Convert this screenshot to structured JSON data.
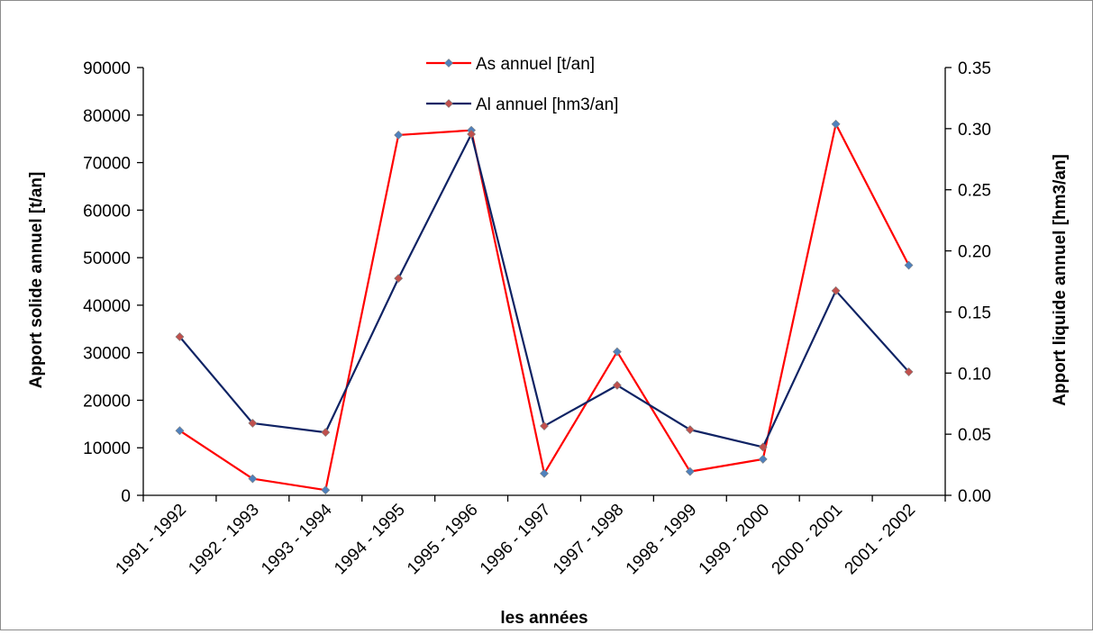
{
  "chart_data": {
    "type": "line",
    "title": "",
    "xlabel": "les années",
    "ylabel_left": "Apport solide annuel [t/an]",
    "ylabel_right": "Apport liquide annuel [hm3/an]",
    "categories": [
      "1991 - 1992",
      "1992 - 1993",
      "1993 - 1994",
      "1994 - 1995",
      "1995 - 1996",
      "1996 - 1997",
      "1997 - 1998",
      "1998 - 1999",
      "1999 - 2000",
      "2000 - 2001",
      "2001 - 2002"
    ],
    "ylim_left": [
      0,
      90000
    ],
    "yticks_left": [
      "0",
      "10000",
      "20000",
      "30000",
      "40000",
      "50000",
      "60000",
      "70000",
      "80000",
      "90000"
    ],
    "ylim_right": [
      0,
      0.35
    ],
    "yticks_right": [
      "0.00",
      "0.05",
      "0.10",
      "0.15",
      "0.20",
      "0.25",
      "0.30",
      "0.35"
    ],
    "grid": false,
    "legend_position": "top-center",
    "series": [
      {
        "name": "As annuel [t/an]",
        "axis": "left",
        "color": "#ff0000",
        "marker_color": "#4f81bd",
        "values": [
          13600,
          3500,
          1100,
          75800,
          76800,
          4600,
          30200,
          5000,
          7600,
          78100,
          48400
        ]
      },
      {
        "name": "Al annuel [hm3/an]",
        "axis": "right",
        "color": "#0f2364",
        "marker_color": "#c0504d",
        "values": [
          0.1297,
          0.059,
          0.0515,
          0.1775,
          0.2955,
          0.0567,
          0.09,
          0.0537,
          0.0395,
          0.1674,
          0.101
        ]
      }
    ]
  }
}
